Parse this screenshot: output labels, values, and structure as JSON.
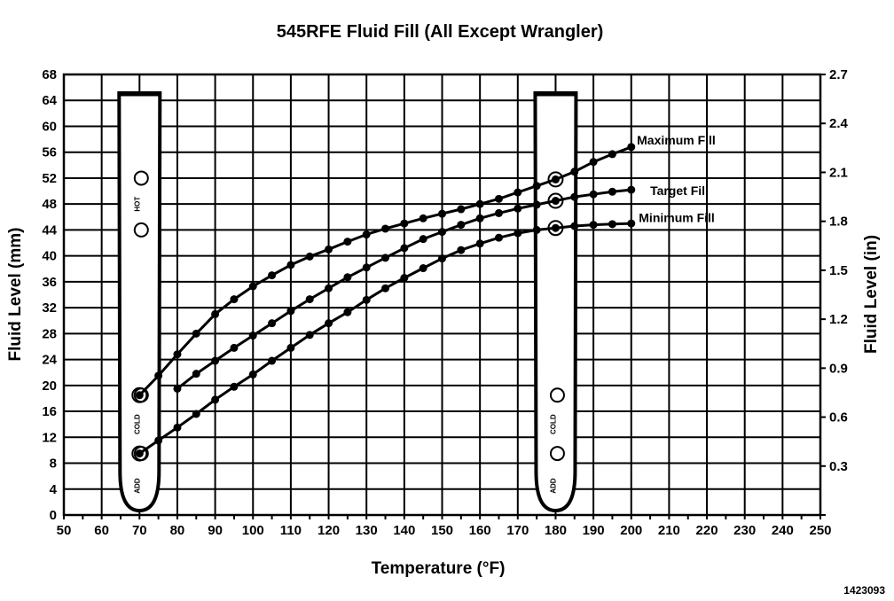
{
  "chart_data": {
    "type": "line",
    "title": "545RFE Fluid Fill (All Except Wrangler)",
    "xlabel": "Temperature (°F)",
    "ylabel": "Fluid Level (mm)",
    "ylabel_right": "Fluid Level (in)",
    "xlim": [
      50,
      250
    ],
    "ylim": [
      0,
      68
    ],
    "ylim_right": [
      0,
      2.7
    ],
    "x_ticks": [
      50,
      60,
      70,
      80,
      90,
      100,
      110,
      120,
      130,
      140,
      150,
      160,
      170,
      180,
      190,
      200,
      210,
      220,
      230,
      240,
      250
    ],
    "y_ticks": [
      0,
      4,
      8,
      12,
      16,
      20,
      24,
      28,
      32,
      36,
      40,
      44,
      48,
      52,
      56,
      60,
      64,
      68
    ],
    "y_ticks_right": [
      "0.3",
      "0.6",
      "0.9",
      "1.2",
      "1.5",
      "1.8",
      "2.1",
      "2.4",
      "2.7"
    ],
    "grid": true,
    "series": [
      {
        "name": "Maximum Fill",
        "x": [
          70,
          75,
          80,
          85,
          90,
          95,
          100,
          105,
          110,
          115,
          120,
          125,
          130,
          135,
          140,
          145,
          150,
          155,
          160,
          165,
          170,
          175,
          180,
          185,
          190,
          195,
          200
        ],
        "y": [
          18.5,
          21.5,
          24.8,
          28,
          31,
          33.3,
          35.3,
          37,
          38.6,
          39.9,
          41,
          42.2,
          43.3,
          44.2,
          45,
          45.8,
          46.5,
          47.2,
          48,
          48.8,
          49.8,
          50.8,
          51.8,
          53,
          54.5,
          55.7,
          56.8
        ]
      },
      {
        "name": "Target Fill",
        "x": [
          80,
          85,
          90,
          95,
          100,
          105,
          110,
          115,
          120,
          125,
          130,
          135,
          140,
          145,
          150,
          155,
          160,
          165,
          170,
          175,
          180,
          185,
          190,
          195,
          200
        ],
        "y": [
          19.5,
          21.8,
          23.8,
          25.8,
          27.7,
          29.6,
          31.5,
          33.3,
          35,
          36.7,
          38.2,
          39.7,
          41.2,
          42.6,
          43.7,
          44.8,
          45.8,
          46.6,
          47.3,
          47.9,
          48.5,
          49.1,
          49.5,
          49.9,
          50.2
        ]
      },
      {
        "name": "Minimum Fill",
        "x": [
          70,
          75,
          80,
          85,
          90,
          95,
          100,
          105,
          110,
          115,
          120,
          125,
          130,
          135,
          140,
          145,
          150,
          155,
          160,
          165,
          170,
          175,
          180,
          185,
          190,
          195,
          200
        ],
        "y": [
          9.5,
          11.5,
          13.5,
          15.6,
          17.8,
          19.8,
          21.7,
          23.8,
          25.8,
          27.8,
          29.6,
          31.3,
          33.2,
          35,
          36.6,
          38.1,
          39.6,
          40.9,
          41.9,
          42.8,
          43.5,
          44,
          44.3,
          44.6,
          44.8,
          44.9,
          45
        ]
      }
    ],
    "dipsticks": [
      {
        "x_position": 70,
        "hot_label": "HOT",
        "cold_label": "COLD",
        "add_label": "ADD"
      },
      {
        "x_position": 180,
        "cold_label": "COLD",
        "add_label": "ADD"
      }
    ]
  },
  "figure_id": "1423093"
}
